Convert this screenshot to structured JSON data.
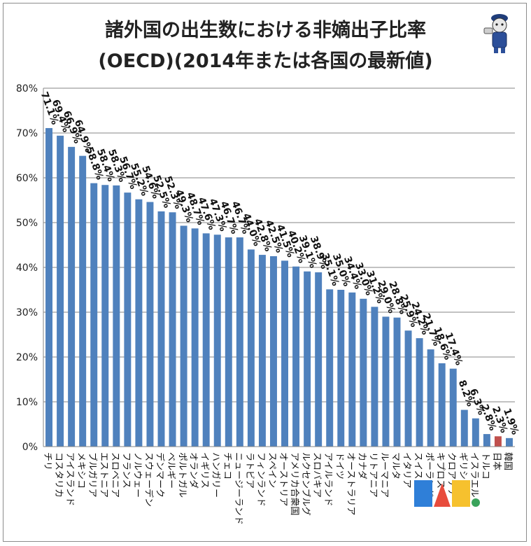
{
  "chart_data": {
    "type": "bar",
    "title_lines": [
      "諸外国の出生数における非嫡出子比率",
      "(OECD)(2014年または各国の最新値)"
    ],
    "xlabel": "",
    "ylabel": "",
    "ylim": [
      0,
      80
    ],
    "yticks": [
      "0%",
      "10%",
      "20%",
      "30%",
      "40%",
      "50%",
      "60%",
      "70%",
      "80%"
    ],
    "grid": true,
    "categories": [
      "チリ",
      "コスタリカ",
      "アイスランド",
      "メキシコ",
      "ブルガリア",
      "エストニア",
      "スロベニア",
      "フランス",
      "ノルウェー",
      "スウェーデン",
      "デンマーク",
      "ベルギー",
      "ポルトガル",
      "オランダ",
      "イギリス",
      "ハンガリー",
      "チェコ",
      "ニュージーランド",
      "ラトビア",
      "フィンランド",
      "スペイン",
      "オーストリア",
      "アメリカ合衆国",
      "ルクセンブルグ",
      "スロバキア",
      "アイルランド",
      "ドイツ",
      "オーストラリア",
      "カナダ",
      "リトアニア",
      "ルーマニア",
      "マルタ",
      "イタリア",
      "スイス",
      "ポーランド",
      "キプロス",
      "クロアチア",
      "ギリシャ",
      "イスラエル",
      "トルコ",
      "日本",
      "韓国"
    ],
    "values": [
      71.1,
      69.4,
      66.9,
      64.9,
      58.8,
      58.4,
      58.3,
      56.7,
      55.2,
      54.6,
      52.5,
      52.3,
      49.3,
      48.7,
      47.6,
      47.3,
      46.7,
      46.7,
      44.0,
      42.8,
      42.5,
      41.5,
      40.2,
      39.1,
      38.9,
      35.1,
      35.0,
      34.4,
      33.0,
      31.2,
      29.0,
      28.8,
      25.9,
      24.2,
      21.7,
      18.6,
      17.4,
      8.2,
      6.3,
      2.8,
      2.3,
      1.9
    ],
    "value_labels": [
      "71.1%",
      "69.4%",
      "66.9%",
      "64.9%",
      "58.8%",
      "58.4%",
      "58.3%",
      "56.7%",
      "55.2%",
      "54.6%",
      "52.5%",
      "52.3%",
      "49.3%",
      "48.7%",
      "47.6%",
      "47.3%",
      "46.7%",
      "46.7%",
      "44.0%",
      "42.8%",
      "42.5%",
      "41.5%",
      "40.2%",
      "39.1%",
      "38.9%",
      "35.1%",
      "35.0%",
      "34.4%",
      "33.0%",
      "31.2%",
      "29.0%",
      "28.8%",
      "25.9%",
      "24.2%",
      "21.7%",
      "18.6%",
      "17.4%",
      "8.2%",
      "6.3%",
      "2.8%",
      "2.3%",
      "1.9%"
    ],
    "colors": {
      "bar": "#4f81bd",
      "highlight": "#c0504d",
      "grid": "#868686"
    },
    "highlight_category": "日本"
  }
}
